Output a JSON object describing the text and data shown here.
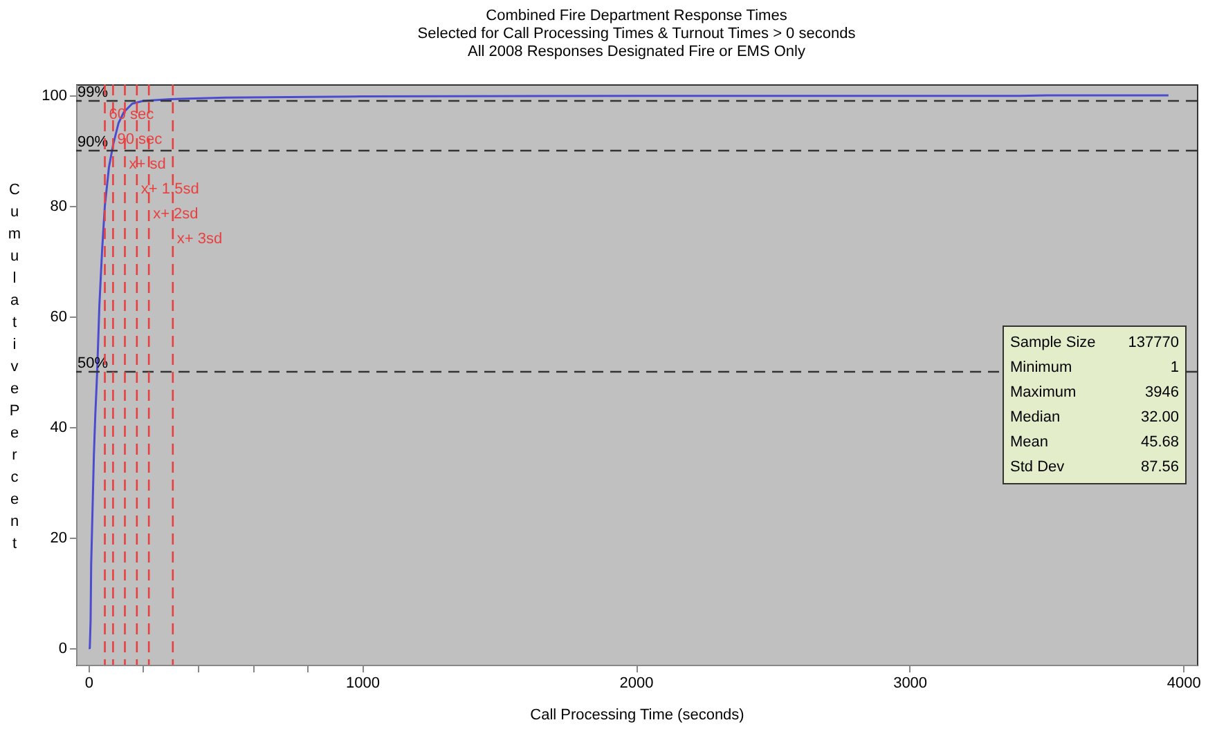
{
  "chart_data": {
    "type": "line",
    "title": [
      "Combined Fire Department Response Times",
      "Selected for Call Processing Times & Turnout Times >  0 seconds",
      "All 2008 Responses Designated Fire or EMS Only"
    ],
    "xlabel": "Call Processing Time (seconds)",
    "ylabel": "Cumulative Percent",
    "series": [
      {
        "color": "#4b4bd0",
        "x": [
          1,
          5,
          8,
          10,
          15,
          20,
          25,
          32,
          40,
          50,
          60,
          75,
          90,
          110,
          130,
          160,
          200,
          300,
          500,
          1000,
          2000,
          3400,
          3500,
          3946
        ],
        "values": [
          0,
          0,
          5,
          15,
          25,
          35,
          42,
          50,
          62,
          72,
          80,
          87,
          91,
          95,
          97,
          98.5,
          99,
          99.3,
          99.6,
          99.8,
          99.9,
          99.9,
          100,
          100
        ]
      }
    ],
    "xlim": [
      -45,
      4050
    ],
    "ylim": [
      -3,
      102
    ],
    "xticks": [
      0,
      {
        "value": 200,
        "label": null
      },
      {
        "value": 400,
        "label": null
      },
      {
        "value": 600,
        "label": null
      },
      {
        "value": 800,
        "label": null
      },
      1000,
      2000,
      3000,
      4000
    ],
    "yticks": [
      0,
      20,
      40,
      60,
      80,
      100
    ],
    "ref_lines": [
      {
        "axis": "y",
        "value": 99,
        "label": "99%",
        "color": "#333333",
        "line_style": "dashed"
      },
      {
        "axis": "y",
        "value": 90,
        "label": "90%",
        "color": "#333333",
        "line_style": "dashed"
      },
      {
        "axis": "y",
        "value": 50,
        "label": "50%",
        "color": "#333333",
        "line_style": "dashed"
      },
      {
        "axis": "x",
        "value": 60,
        "label": "60 sec",
        "color": "#e84040",
        "line_style": "dashed"
      },
      {
        "axis": "x",
        "value": 90,
        "label": "90 sec",
        "color": "#e84040",
        "line_style": "dashed"
      },
      {
        "axis": "x",
        "value": 133.24,
        "label": "x+ sd",
        "color": "#e84040",
        "line_style": "dashed"
      },
      {
        "axis": "x",
        "value": 177.02,
        "label": "x+ 1.5sd",
        "color": "#e84040",
        "line_style": "dashed"
      },
      {
        "axis": "x",
        "value": 220.8,
        "label": "x+ 2sd",
        "color": "#e84040",
        "line_style": "dashed"
      },
      {
        "axis": "x",
        "value": 308.36,
        "label": "x+ 3sd",
        "color": "#e84040",
        "line_style": "dashed"
      }
    ],
    "annotations": [
      "Sample Size 137770",
      "Minimum 1",
      "Maximum 3946",
      "Median 32.00",
      "Mean 45.68",
      "Std Dev 87.56"
    ],
    "grid": false,
    "marker": "none",
    "line_style": "solid"
  }
}
